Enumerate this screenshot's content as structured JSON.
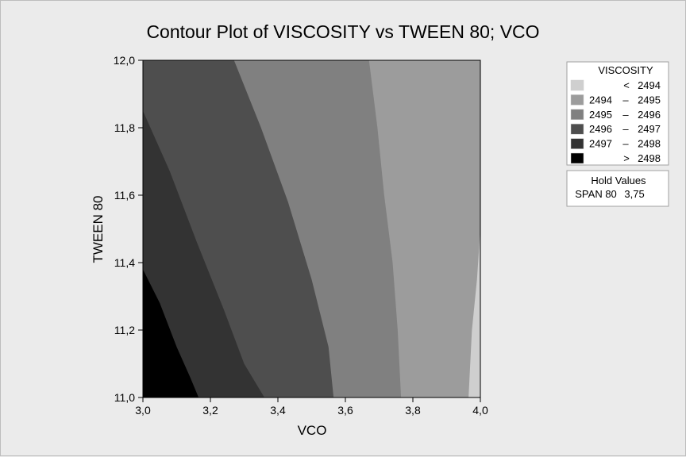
{
  "chart_data": {
    "type": "contour",
    "title": "Contour Plot of VISCOSITY vs TWEEN 80; VCO",
    "xlabel": "VCO",
    "ylabel": "TWEEN 80",
    "xlim": [
      3.0,
      4.0
    ],
    "ylim": [
      11.0,
      12.0
    ],
    "x_ticks": [
      "3,0",
      "3,2",
      "3,4",
      "3,6",
      "3,8",
      "4,0"
    ],
    "y_ticks": [
      "11,0",
      "11,2",
      "11,4",
      "11,6",
      "11,8",
      "12,0"
    ],
    "legend": {
      "title": "VISCOSITY",
      "levels": [
        {
          "op": "<",
          "lo": "",
          "hi": "2494",
          "color": "#cfcfcf"
        },
        {
          "op": "–",
          "lo": "2494",
          "hi": "2495",
          "color": "#9c9c9c"
        },
        {
          "op": "–",
          "lo": "2495",
          "hi": "2496",
          "color": "#808080"
        },
        {
          "op": "–",
          "lo": "2496",
          "hi": "2497",
          "color": "#4e4e4e"
        },
        {
          "op": "–",
          "lo": "2497",
          "hi": "2498",
          "color": "#333333"
        },
        {
          "op": ">",
          "lo": "",
          "hi": "2498",
          "color": "#000000"
        }
      ],
      "position": "right"
    },
    "hold_values": {
      "title": "Hold Values",
      "items": [
        {
          "name": "SPAN 80",
          "value": "3,75"
        }
      ]
    },
    "contour_boundaries": [
      {
        "between": [
          "2498",
          "2497"
        ],
        "points": [
          [
            3.0,
            11.38
          ],
          [
            3.05,
            11.28
          ],
          [
            3.1,
            11.15
          ],
          [
            3.14,
            11.06
          ],
          [
            3.165,
            11.0
          ]
        ]
      },
      {
        "between": [
          "2497",
          "2496"
        ],
        "points": [
          [
            3.0,
            11.85
          ],
          [
            3.08,
            11.67
          ],
          [
            3.16,
            11.46
          ],
          [
            3.24,
            11.26
          ],
          [
            3.3,
            11.1
          ],
          [
            3.36,
            11.0
          ]
        ]
      },
      {
        "between": [
          "2496",
          "2495"
        ],
        "points": [
          [
            3.27,
            12.0
          ],
          [
            3.35,
            11.8
          ],
          [
            3.43,
            11.58
          ],
          [
            3.5,
            11.35
          ],
          [
            3.55,
            11.15
          ],
          [
            3.565,
            11.0
          ]
        ]
      },
      {
        "between": [
          "2495",
          "2494"
        ],
        "points": [
          [
            3.67,
            12.0
          ],
          [
            3.695,
            11.8
          ],
          [
            3.715,
            11.6
          ],
          [
            3.74,
            11.4
          ],
          [
            3.755,
            11.2
          ],
          [
            3.765,
            11.0
          ]
        ]
      },
      {
        "between": [
          "2494",
          "<2494"
        ],
        "points": [
          [
            4.0,
            11.5
          ],
          [
            3.99,
            11.35
          ],
          [
            3.975,
            11.2
          ],
          [
            3.965,
            11.0
          ]
        ]
      }
    ]
  }
}
